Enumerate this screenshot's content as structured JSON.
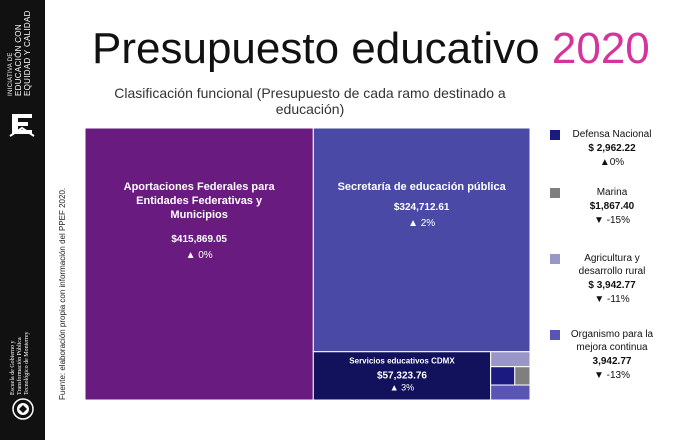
{
  "brand": {
    "org_lines": [
      "INICIATIVA DE",
      "EDUCACIÓN CON",
      "EQUIDAD Y CALIDAD"
    ],
    "school_lines": [
      "Escuela de Gobierno y",
      "Transformación Pública",
      "Tecnológico de Monterrey"
    ]
  },
  "source_note": "Fuente: elaboración propia con información del PPEF 2020.",
  "chart_data": {
    "type": "treemap",
    "title": "Presupuesto educativo",
    "title_year": "2020",
    "subtitle": "Clasificación funcional (Presupuesto de cada ramo destinado a educación)",
    "colors": {
      "aportaciones": "#6a1b7f",
      "sep": "#4a4aa6",
      "cdmx": "#11115c",
      "defensa": "#1a1a80",
      "marina": "#7f7f7f",
      "agricultura": "#9a97c8",
      "organismo": "#5a55b4",
      "accent": "#d4349b"
    },
    "nodes": [
      {
        "key": "aportaciones",
        "name": "Aportaciones Federales para Entidades Federativas y Municipios",
        "value": 415869.05,
        "value_label": "$415,869.05",
        "change_label": "0%",
        "direction": "up"
      },
      {
        "key": "sep",
        "name": "Secretaría de educación pública",
        "value": 324712.61,
        "value_label": "$324,712.61",
        "change_label": "2%",
        "direction": "up"
      },
      {
        "key": "cdmx",
        "name": "Servicios educativos CDMX",
        "value": 57323.76,
        "value_label": "$57,323.76",
        "change_label": "3%",
        "direction": "up"
      },
      {
        "key": "agricultura",
        "name": "Agricultura y desarrollo rural",
        "value": 3942.77
      },
      {
        "key": "organismo",
        "name": "Organismo para la mejora continua",
        "value": 3942.77
      },
      {
        "key": "defensa",
        "name": "Defensa Nacional",
        "value": 2962.22
      },
      {
        "key": "marina",
        "name": "Marina",
        "value": 1867.4
      }
    ],
    "legend": [
      {
        "key": "defensa",
        "name": "Defensa Nacional",
        "value_label": "$ 2,962.22",
        "change_label": "0%",
        "direction": "up"
      },
      {
        "key": "marina",
        "name": "Marina",
        "value_label": "$1,867.40",
        "change_label": "-15%",
        "direction": "down"
      },
      {
        "key": "agricultura",
        "name": "Agricultura y desarrollo rural",
        "value_label": "$ 3,942.77",
        "change_label": "-11%",
        "direction": "down"
      },
      {
        "key": "organismo",
        "name": "Organismo para la mejora continua",
        "value_label": "3,942.77",
        "change_label": "-13%",
        "direction": "down"
      }
    ]
  }
}
